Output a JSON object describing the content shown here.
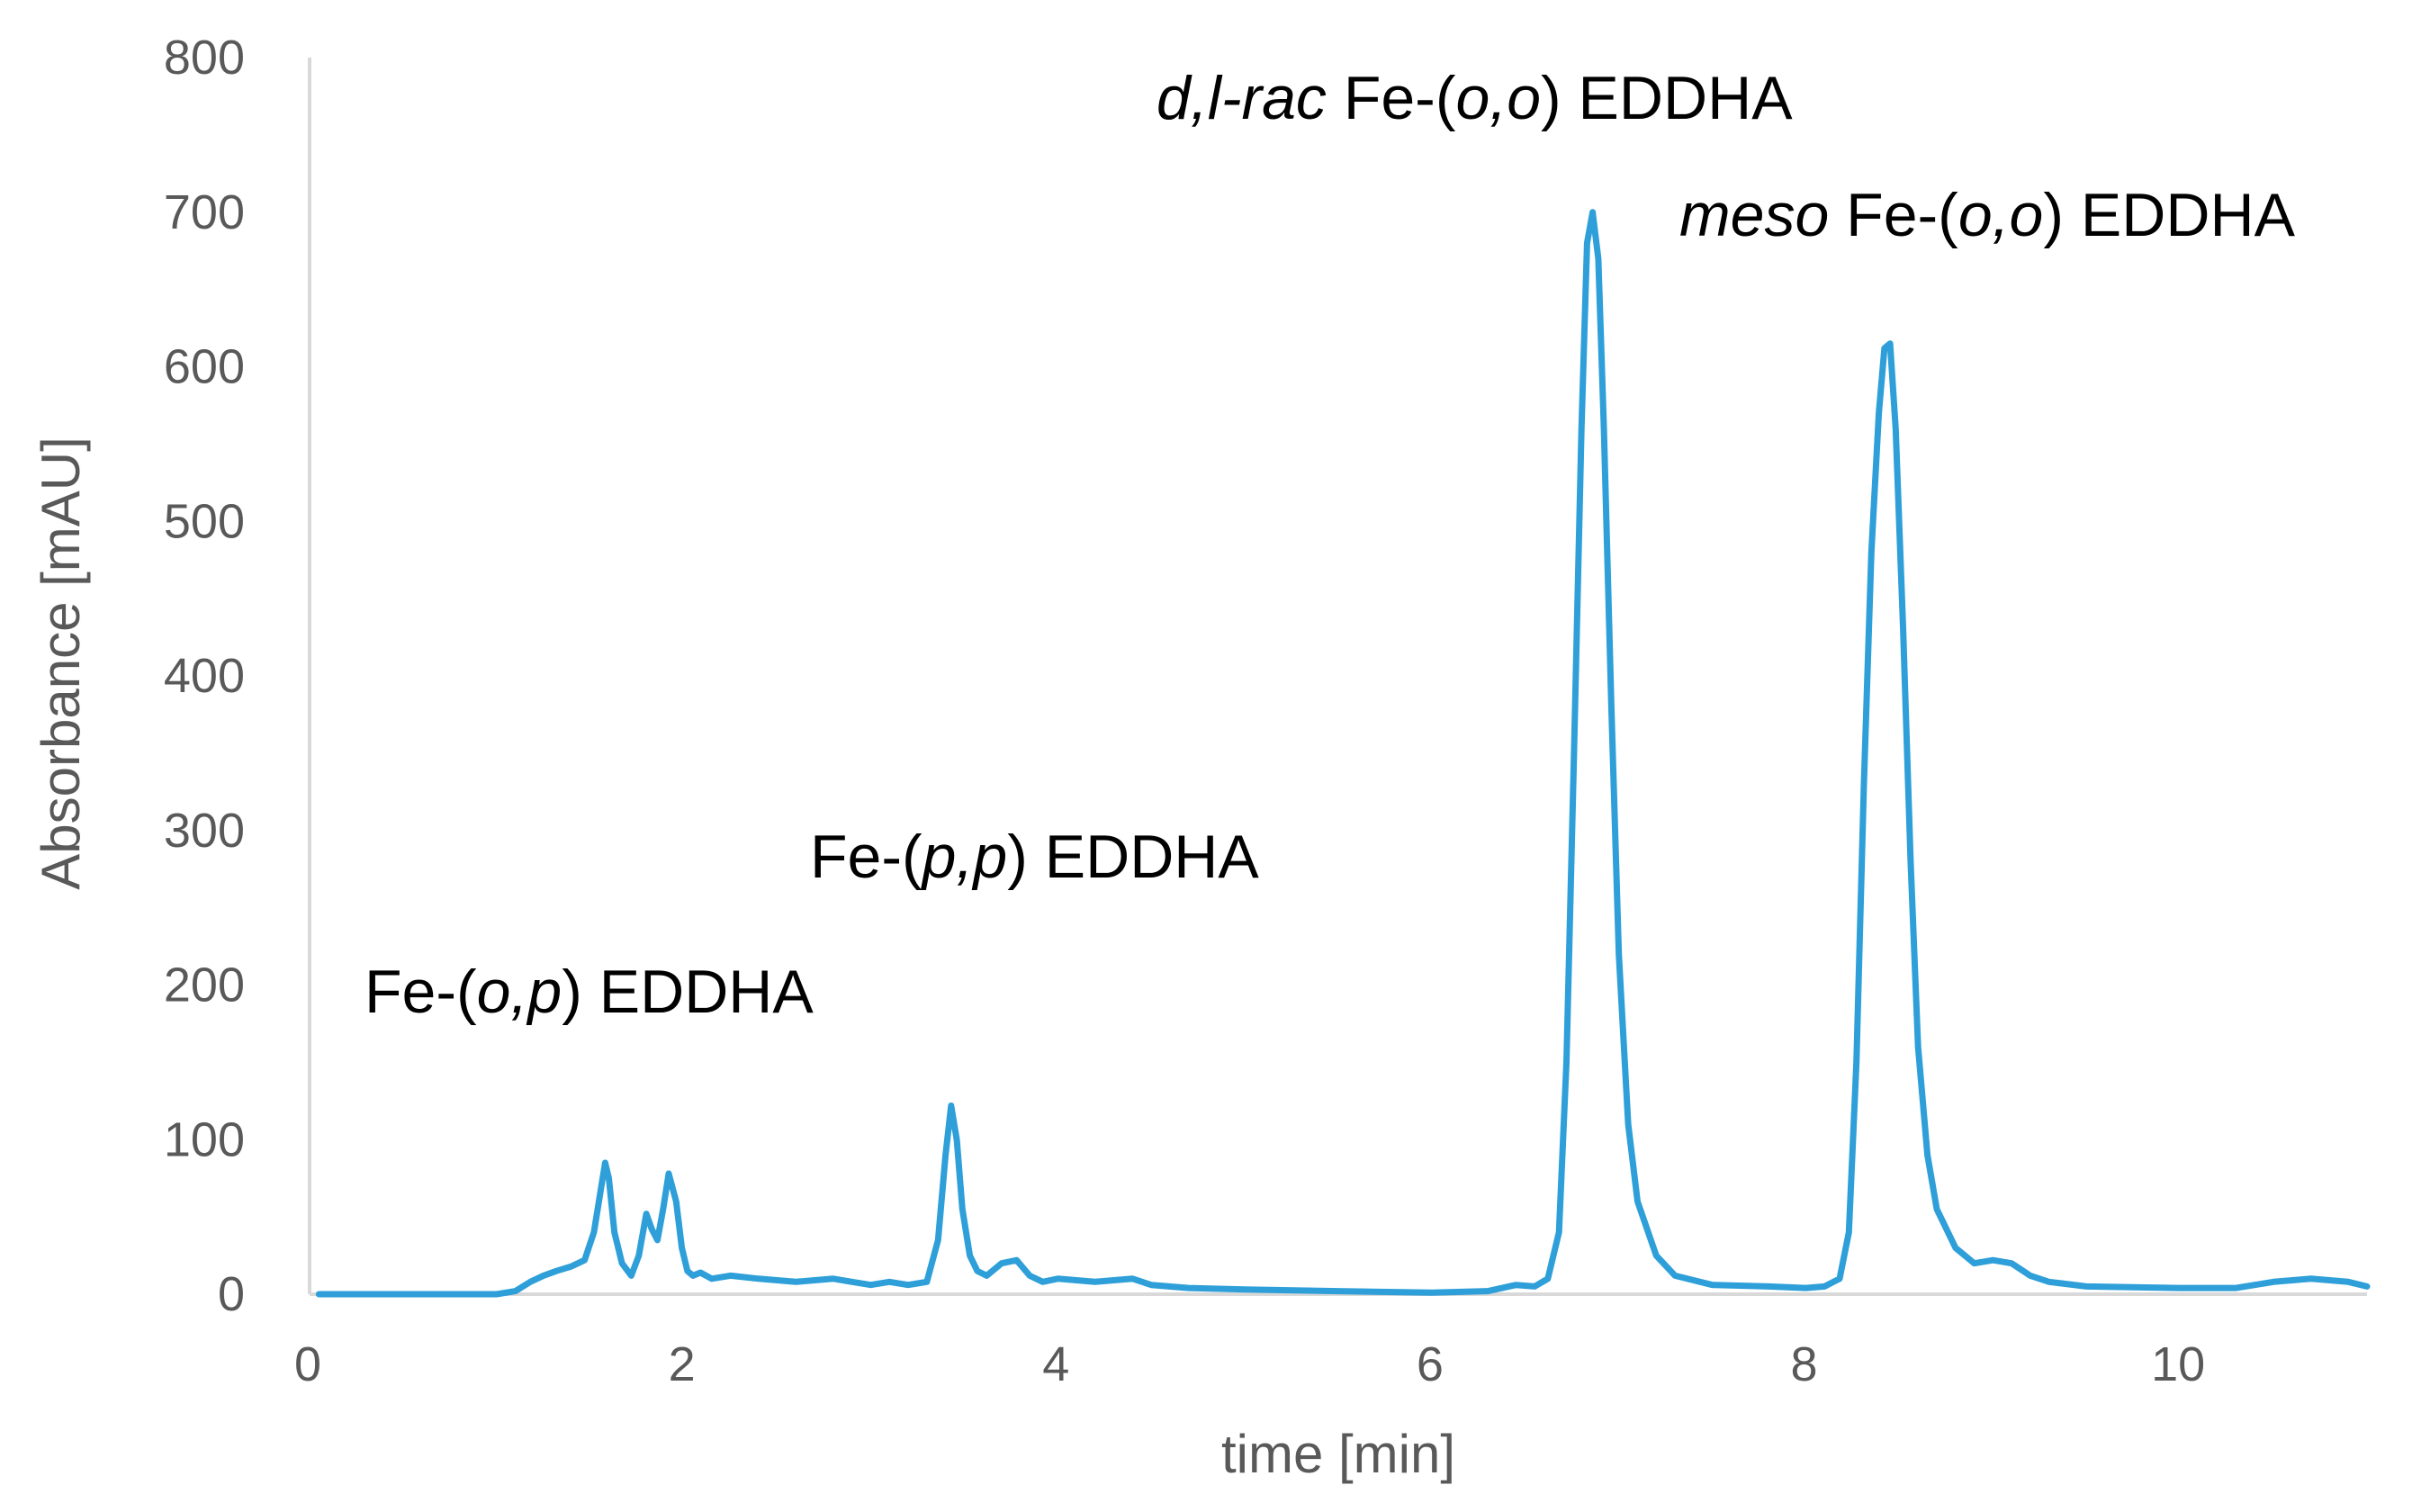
{
  "chart_data": {
    "type": "line",
    "title": "",
    "xlabel": "time [min]",
    "ylabel": "Absorbance [mAU]",
    "xlim": [
      0,
      11
    ],
    "ylim": [
      0,
      800
    ],
    "x_ticks": [
      0,
      2,
      4,
      6,
      8,
      10
    ],
    "y_ticks": [
      0,
      100,
      200,
      300,
      400,
      500,
      600,
      700,
      800
    ],
    "grid": false,
    "legend": "none",
    "series_color": "#2e9fd8",
    "series": [
      {
        "x": [
          0.05,
          1.0,
          1.1,
          1.18,
          1.25,
          1.32,
          1.4,
          1.47,
          1.52,
          1.56,
          1.58,
          1.6,
          1.63,
          1.67,
          1.72,
          1.76,
          1.8,
          1.83,
          1.86,
          1.89,
          1.92,
          1.96,
          1.99,
          2.02,
          2.05,
          2.09,
          2.15,
          2.25,
          2.4,
          2.6,
          2.8,
          2.9,
          3.0,
          3.1,
          3.2,
          3.3,
          3.36,
          3.4,
          3.43,
          3.46,
          3.49,
          3.53,
          3.57,
          3.62,
          3.7,
          3.78,
          3.85,
          3.92,
          4.0,
          4.2,
          4.4,
          4.5,
          4.7,
          5.0,
          5.5,
          6.0,
          6.3,
          6.45,
          6.55,
          6.62,
          6.68,
          6.72,
          6.76,
          6.8,
          6.83,
          6.86,
          6.89,
          6.92,
          6.96,
          7.0,
          7.05,
          7.1,
          7.2,
          7.3,
          7.5,
          7.8,
          8.0,
          8.1,
          8.18,
          8.23,
          8.27,
          8.31,
          8.35,
          8.39,
          8.42,
          8.45,
          8.48,
          8.52,
          8.56,
          8.6,
          8.65,
          8.7,
          8.8,
          8.9,
          9.0,
          9.1,
          9.2,
          9.3,
          9.5,
          10.0,
          10.3,
          10.5,
          10.7,
          10.9,
          11.0
        ],
        "y": [
          0,
          0,
          2,
          8,
          12,
          15,
          18,
          22,
          40,
          70,
          85,
          75,
          40,
          20,
          12,
          25,
          52,
          42,
          35,
          55,
          78,
          60,
          30,
          15,
          12,
          14,
          10,
          12,
          10,
          8,
          10,
          8,
          6,
          8,
          6,
          8,
          35,
          90,
          122,
          100,
          55,
          25,
          15,
          12,
          20,
          22,
          12,
          8,
          10,
          8,
          10,
          6,
          4,
          3,
          2,
          1,
          2,
          6,
          5,
          10,
          40,
          150,
          350,
          560,
          680,
          700,
          670,
          560,
          380,
          220,
          110,
          60,
          25,
          12,
          6,
          5,
          4,
          5,
          10,
          40,
          150,
          330,
          480,
          570,
          612,
          615,
          560,
          430,
          280,
          160,
          90,
          55,
          30,
          20,
          22,
          20,
          12,
          8,
          5,
          4,
          4,
          8,
          10,
          8,
          5
        ]
      }
    ],
    "annotations": [
      {
        "id": "op",
        "plain": "Fe-(",
        "italic": "o,p",
        "rest": ") EDDHA"
      },
      {
        "id": "pp",
        "plain": "Fe-(",
        "italic": "p,p",
        "rest": ") EDDHA"
      },
      {
        "id": "rac",
        "italic_lead": "d,l-rac",
        "plain": " Fe-(",
        "italic": "o,o",
        "rest": ") EDDHA"
      },
      {
        "id": "meso",
        "italic_lead": "meso",
        "plain": " Fe-(",
        "italic": "o,o",
        "rest": ") EDDHA"
      }
    ]
  }
}
